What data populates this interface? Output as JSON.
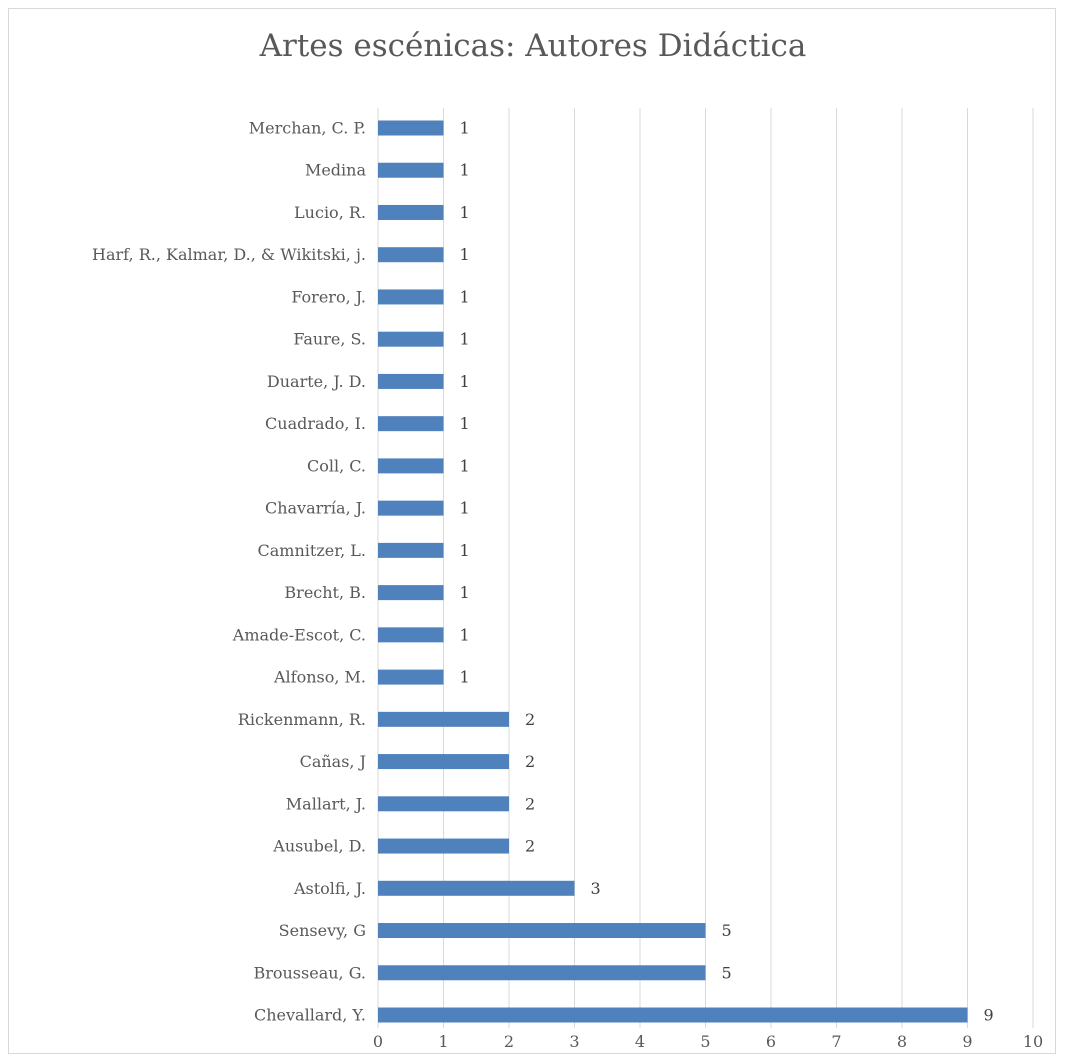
{
  "chart_data": {
    "type": "bar",
    "orientation": "horizontal",
    "title": "Artes escénicas: Autores Didáctica",
    "categories": [
      "Merchan, C. P.",
      "Medina",
      "Lucio, R.",
      "Harf, R., Kalmar, D., & Wikitski, j.",
      "Forero, J.",
      "Faure, S.",
      "Duarte, J. D.",
      "Cuadrado, I.",
      "Coll, C.",
      "Chavarría, J.",
      "Camnitzer, L.",
      "Brecht, B.",
      "Amade-Escot, C.",
      "Alfonso, M.",
      "Rickenmann, R.",
      "Cañas, J",
      "Mallart, J.",
      "Ausubel, D.",
      "Astolfi, J.",
      "Sensevy, G",
      "Brousseau, G.",
      "Chevallard, Y."
    ],
    "values": [
      1,
      1,
      1,
      1,
      1,
      1,
      1,
      1,
      1,
      1,
      1,
      1,
      1,
      1,
      2,
      2,
      2,
      2,
      3,
      5,
      5,
      9
    ],
    "xlim": [
      0,
      10
    ],
    "xticks": [
      "0",
      "1",
      "2",
      "3",
      "4",
      "5",
      "6",
      "7",
      "8",
      "9",
      "10"
    ],
    "grid": "vertical",
    "data_labels": true,
    "bar_color": "#4f81bd",
    "grid_color": "#d9d9d9"
  }
}
